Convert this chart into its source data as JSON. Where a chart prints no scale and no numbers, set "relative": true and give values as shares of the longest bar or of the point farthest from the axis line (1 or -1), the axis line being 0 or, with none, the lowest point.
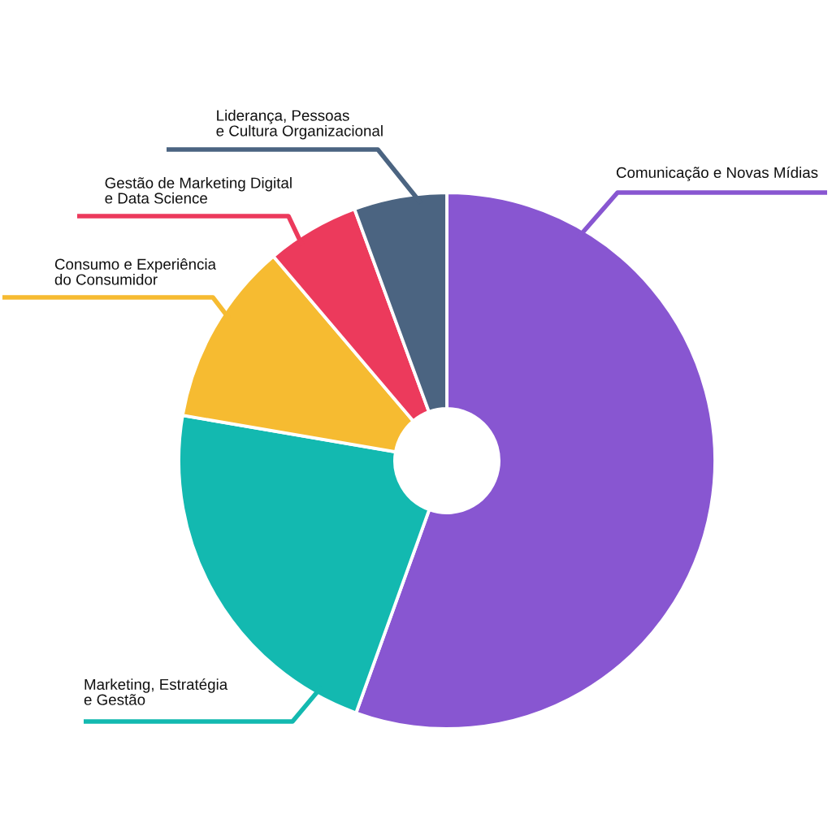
{
  "chart_data": {
    "type": "donut",
    "relative": true,
    "categories": [
      "Comunicação e Novas Mídias",
      "Marketing, Estratégia\ne Gestão",
      "Consumo e Experiência\ndo Consumidor",
      "Gestão de Marketing Digital\ne Data Science",
      "Liderança, Pessoas\ne Cultura Organizacional"
    ],
    "values": [
      55.5,
      22.2,
      11.1,
      5.6,
      5.6
    ],
    "colors": [
      "#8856d1",
      "#13b9b0",
      "#f6bb31",
      "#ec3a5c",
      "#4b6481"
    ],
    "legend": false
  }
}
